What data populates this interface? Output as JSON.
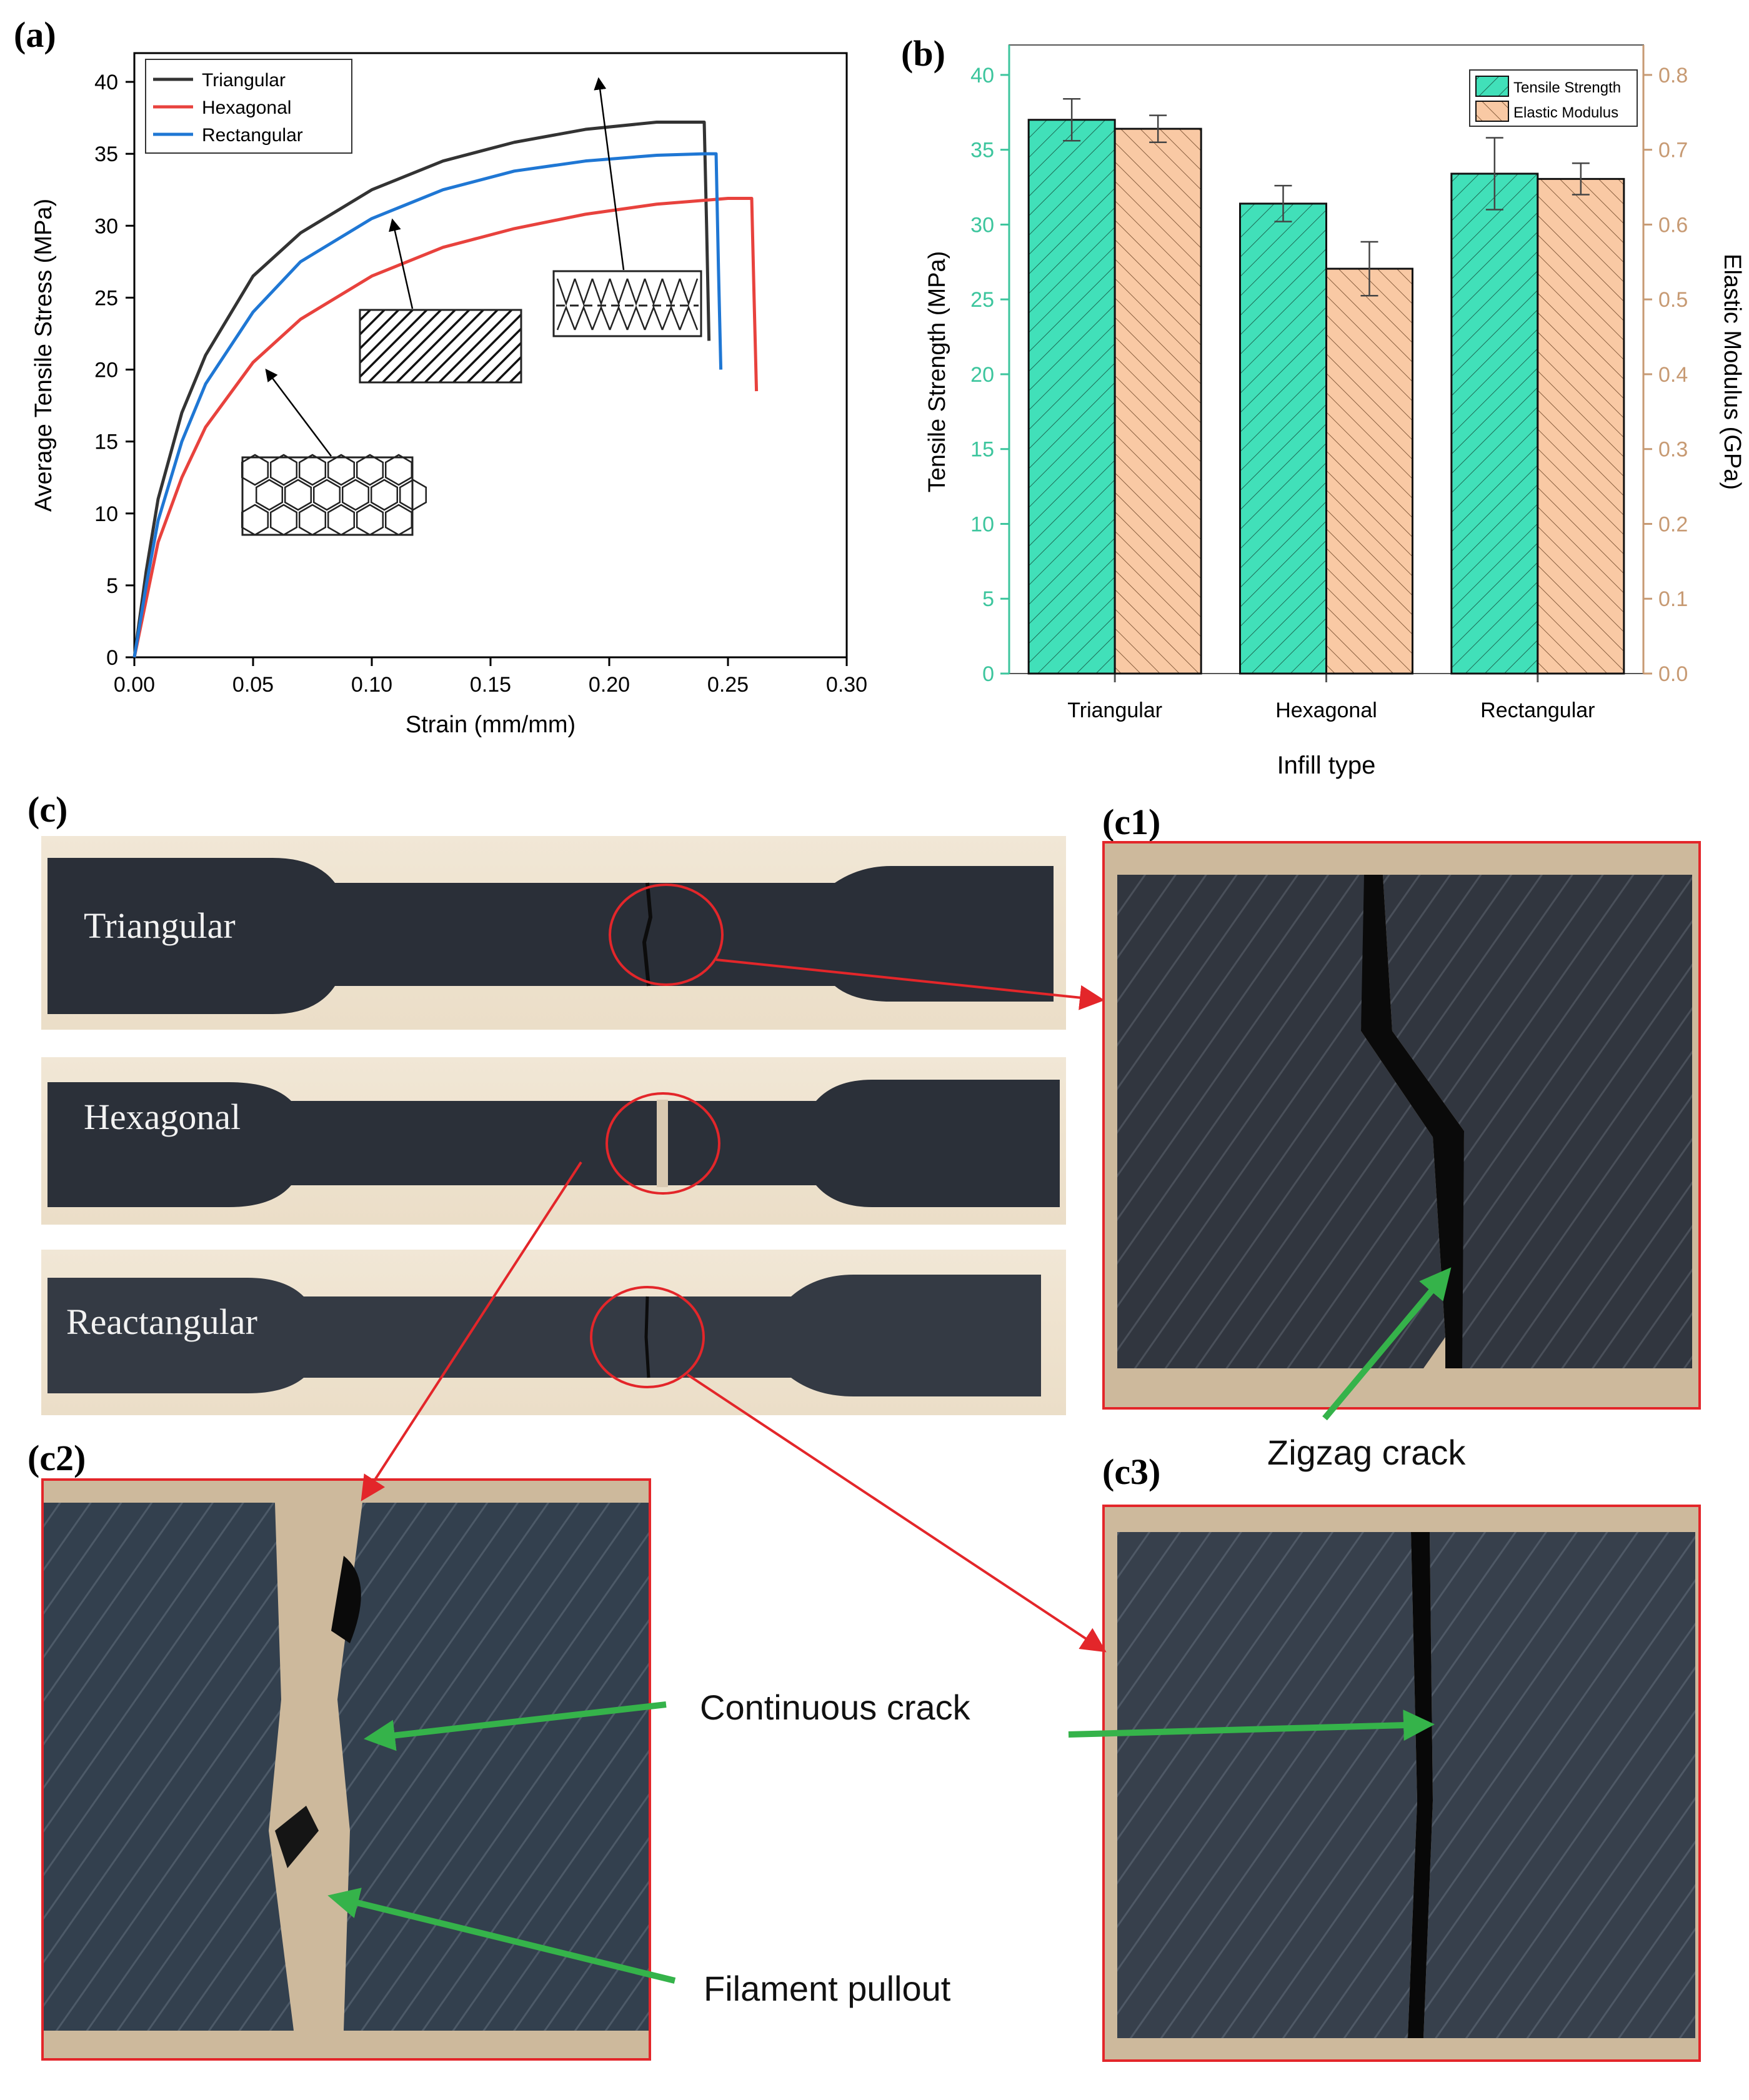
{
  "panels": {
    "a": "(a)",
    "b": "(b)",
    "c": "(c)",
    "c1": "(c1)",
    "c2": "(c2)",
    "c3": "(c3)"
  },
  "chart_data": [
    {
      "type": "line",
      "panel": "a",
      "xlabel": "Strain (mm/mm)",
      "ylabel": "Average Tensile Stress (MPa)",
      "xlim": [
        0,
        0.3
      ],
      "ylim": [
        0,
        42
      ],
      "xticks": [
        "0.00",
        "0.05",
        "0.10",
        "0.15",
        "0.20",
        "0.25",
        "0.30"
      ],
      "yticks": [
        "0",
        "5",
        "10",
        "15",
        "20",
        "25",
        "30",
        "35",
        "40"
      ],
      "legend_position": "top-left",
      "series": [
        {
          "name": "Triangular",
          "color": "#333333",
          "x": [
            0,
            0.005,
            0.01,
            0.02,
            0.03,
            0.05,
            0.07,
            0.1,
            0.13,
            0.16,
            0.19,
            0.22,
            0.24,
            0.241,
            0.242
          ],
          "y": [
            0,
            6,
            11,
            17,
            21,
            26.5,
            29.5,
            32.5,
            34.5,
            35.8,
            36.7,
            37.2,
            37.2,
            30,
            22
          ]
        },
        {
          "name": "Hexagonal",
          "color": "#e8423d",
          "x": [
            0,
            0.005,
            0.01,
            0.02,
            0.03,
            0.05,
            0.07,
            0.1,
            0.13,
            0.16,
            0.19,
            0.22,
            0.25,
            0.26,
            0.261,
            0.262
          ],
          "y": [
            0,
            4,
            8,
            12.5,
            16,
            20.5,
            23.5,
            26.5,
            28.5,
            29.8,
            30.8,
            31.5,
            31.9,
            31.9,
            25,
            18.5
          ]
        },
        {
          "name": "Rectangular",
          "color": "#1f77d4",
          "x": [
            0,
            0.005,
            0.01,
            0.02,
            0.03,
            0.05,
            0.07,
            0.1,
            0.13,
            0.16,
            0.19,
            0.22,
            0.24,
            0.245,
            0.246,
            0.247
          ],
          "y": [
            0,
            5,
            9.5,
            15,
            19,
            24,
            27.5,
            30.5,
            32.5,
            33.8,
            34.5,
            34.9,
            35,
            35,
            27,
            20
          ]
        }
      ]
    },
    {
      "type": "bar",
      "panel": "b",
      "categories": [
        "Triangular",
        "Hexagonal",
        "Rectangular"
      ],
      "xlabel": "Infill type",
      "ylabel": "Tensile Strength (MPa)",
      "y2label": "Elastic Modulus (GPa)",
      "ylim": [
        0,
        42
      ],
      "y2lim": [
        0,
        0.84
      ],
      "yticks": [
        "0",
        "5",
        "10",
        "15",
        "20",
        "25",
        "30",
        "35",
        "40"
      ],
      "y2ticks": [
        "0.0",
        "0.1",
        "0.2",
        "0.3",
        "0.4",
        "0.5",
        "0.6",
        "0.7",
        "0.8"
      ],
      "legend_position": "top-right",
      "series": [
        {
          "name": "Tensile Strength",
          "color": "#41e0b9",
          "axis": "left",
          "values": [
            37.0,
            31.4,
            33.4
          ],
          "errors": [
            1.4,
            1.2,
            2.4
          ]
        },
        {
          "name": "Elastic Modulus",
          "color": "#f9c9a4",
          "axis": "right",
          "values": [
            0.728,
            0.541,
            0.661
          ],
          "errors": [
            0.018,
            0.036,
            0.021
          ]
        }
      ],
      "colors": {
        "left_axis": "#3cc59d",
        "right_axis": "#c79a73"
      }
    }
  ],
  "photos": {
    "specimens": [
      "Triangular",
      "Hexagonal",
      "Reactangular"
    ],
    "annotations": {
      "zigzag": "Zigzag crack",
      "continuous": "Continuous crack",
      "pullout": "Filament pullout"
    }
  }
}
